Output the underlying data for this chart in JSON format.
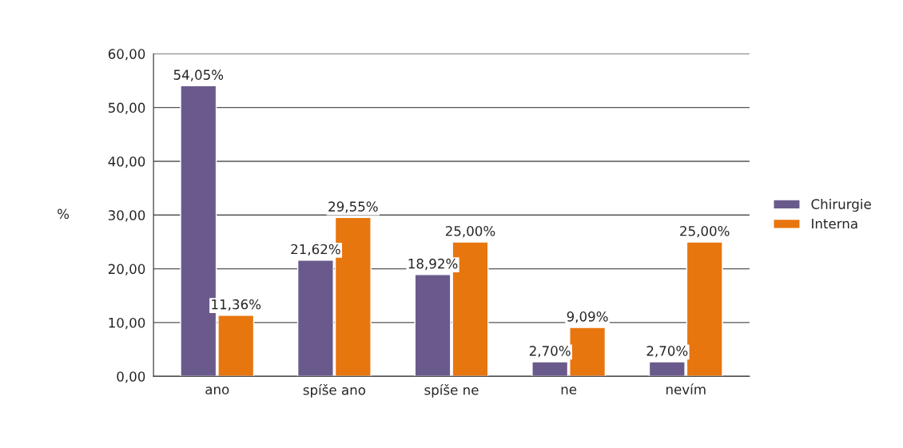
{
  "chart_data": {
    "type": "bar",
    "ylabel": "%",
    "categories": [
      "ano",
      "spíše ano",
      "spíše ne",
      "ne",
      "nevím"
    ],
    "series": [
      {
        "name": "Chirurgie",
        "color": "#6a5a8c",
        "values": [
          54.05,
          21.62,
          18.92,
          2.7,
          2.7
        ],
        "value_labels": [
          "54,05%",
          "21,62%",
          "18,92%",
          "2,70%",
          "2,70%"
        ]
      },
      {
        "name": "Interna",
        "color": "#e8760f",
        "values": [
          11.36,
          29.55,
          25.0,
          9.09,
          25.0
        ],
        "value_labels": [
          "11,36%",
          "29,55%",
          "25,00%",
          "9,09%",
          "25,00%"
        ]
      }
    ],
    "ylim": [
      0,
      60
    ],
    "yticks": [
      {
        "value": 0,
        "label": "0,00"
      },
      {
        "value": 10,
        "label": "10,00"
      },
      {
        "value": 20,
        "label": "20,00"
      },
      {
        "value": 30,
        "label": "30,00"
      },
      {
        "value": 40,
        "label": "40,00"
      },
      {
        "value": 50,
        "label": "50,00"
      },
      {
        "value": 60,
        "label": "60,00"
      }
    ],
    "grid": "y",
    "legend": "right"
  }
}
